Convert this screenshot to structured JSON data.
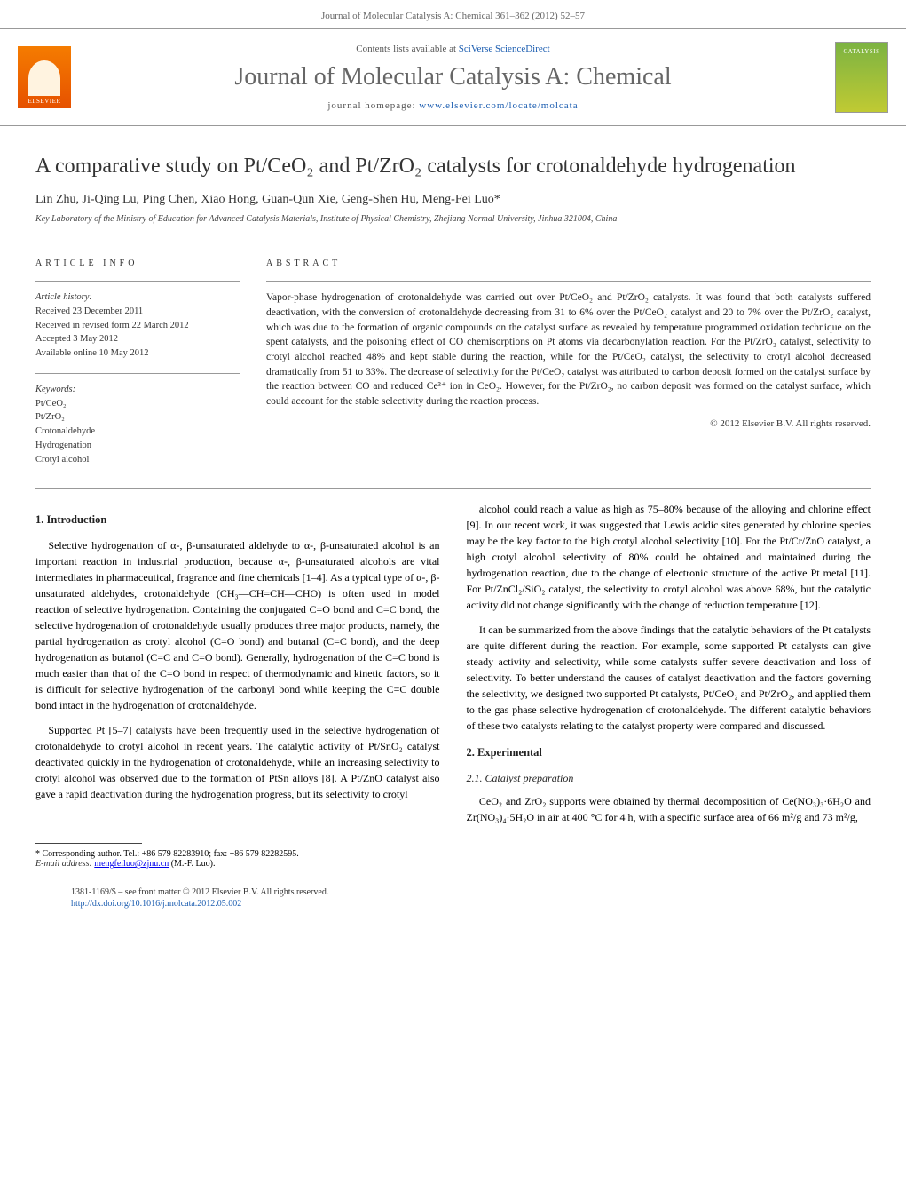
{
  "header": {
    "citation": "Journal of Molecular Catalysis A: Chemical 361–362 (2012) 52–57"
  },
  "bar": {
    "contents_prefix": "Contents lists available at ",
    "contents_link": "SciVerse ScienceDirect",
    "journal_title": "Journal of Molecular Catalysis A: Chemical",
    "homepage_prefix": "journal homepage: ",
    "homepage_link": "www.elsevier.com/locate/molcata",
    "publisher_logo_text": "ELSEVIER",
    "cover_label": "CATALYSIS"
  },
  "title": "A comparative study on Pt/CeO₂ and Pt/ZrO₂ catalysts for crotonaldehyde hydrogenation",
  "authors_line": "Lin Zhu, Ji-Qing Lu, Ping Chen, Xiao Hong, Guan-Qun Xie, Geng-Shen Hu, Meng-Fei Luo*",
  "affiliation": "Key Laboratory of the Ministry of Education for Advanced Catalysis Materials, Institute of Physical Chemistry, Zhejiang Normal University, Jinhua 321004, China",
  "article_info": {
    "heading": "ARTICLE INFO",
    "history_label": "Article history:",
    "history_lines": [
      "Received 23 December 2011",
      "Received in revised form 22 March 2012",
      "Accepted 3 May 2012",
      "Available online 10 May 2012"
    ],
    "keywords_label": "Keywords:",
    "keywords": [
      "Pt/CeO₂",
      "Pt/ZrO₂",
      "Crotonaldehyde",
      "Hydrogenation",
      "Crotyl alcohol"
    ]
  },
  "abstract": {
    "heading": "ABSTRACT",
    "text": "Vapor-phase hydrogenation of crotonaldehyde was carried out over Pt/CeO₂ and Pt/ZrO₂ catalysts. It was found that both catalysts suffered deactivation, with the conversion of crotonaldehyde decreasing from 31 to 6% over the Pt/CeO₂ catalyst and 20 to 7% over the Pt/ZrO₂ catalyst, which was due to the formation of organic compounds on the catalyst surface as revealed by temperature programmed oxidation technique on the spent catalysts, and the poisoning effect of CO chemisorptions on Pt atoms via decarbonylation reaction. For the Pt/ZrO₂ catalyst, selectivity to crotyl alcohol reached 48% and kept stable during the reaction, while for the Pt/CeO₂ catalyst, the selectivity to crotyl alcohol decreased dramatically from 51 to 33%. The decrease of selectivity for the Pt/CeO₂ catalyst was attributed to carbon deposit formed on the catalyst surface by the reaction between CO and reduced Ce³⁺ ion in CeO₂. However, for the Pt/ZrO₂, no carbon deposit was formed on the catalyst surface, which could account for the stable selectivity during the reaction process.",
    "copyright": "© 2012 Elsevier B.V. All rights reserved."
  },
  "body": {
    "sec1_head": "1. Introduction",
    "p1": "Selective hydrogenation of α-, β-unsaturated aldehyde to α-, β-unsaturated alcohol is an important reaction in industrial production, because α-, β-unsaturated alcohols are vital intermediates in pharmaceutical, fragrance and fine chemicals [1–4]. As a typical type of α-, β-unsaturated aldehydes, crotonaldehyde (CH₃—CH=CH—CHO) is often used in model reaction of selective hydrogenation. Containing the conjugated C=O bond and C=C bond, the selective hydrogenation of crotonaldehyde usually produces three major products, namely, the partial hydrogenation as crotyl alcohol (C=O bond) and butanal (C=C bond), and the deep hydrogenation as butanol (C=C and C=O bond). Generally, hydrogenation of the C=C bond is much easier than that of the C=O bond in respect of thermodynamic and kinetic factors, so it is difficult for selective hydrogenation of the carbonyl bond while keeping the C=C double bond intact in the hydrogenation of crotonaldehyde.",
    "p2": "Supported Pt [5–7] catalysts have been frequently used in the selective hydrogenation of crotonaldehyde to crotyl alcohol in recent years. The catalytic activity of Pt/SnO₂ catalyst deactivated quickly in the hydrogenation of crotonaldehyde, while an increasing selectivity to crotyl alcohol was observed due to the formation of PtSn alloys [8]. A Pt/ZnO catalyst also gave a rapid deactivation during the hydrogenation progress, but its selectivity to crotyl",
    "p3": "alcohol could reach a value as high as 75–80% because of the alloying and chlorine effect [9]. In our recent work, it was suggested that Lewis acidic sites generated by chlorine species may be the key factor to the high crotyl alcohol selectivity [10]. For the Pt/Cr/ZnO catalyst, a high crotyl alcohol selectivity of 80% could be obtained and maintained during the hydrogenation reaction, due to the change of electronic structure of the active Pt metal [11]. For Pt/ZnCl₂/SiO₂ catalyst, the selectivity to crotyl alcohol was above 68%, but the catalytic activity did not change significantly with the change of reduction temperature [12].",
    "p4": "It can be summarized from the above findings that the catalytic behaviors of the Pt catalysts are quite different during the reaction. For example, some supported Pt catalysts can give steady activity and selectivity, while some catalysts suffer severe deactivation and loss of selectivity. To better understand the causes of catalyst deactivation and the factors governing the selectivity, we designed two supported Pt catalysts, Pt/CeO₂ and Pt/ZrO₂, and applied them to the gas phase selective hydrogenation of crotonaldehyde. The different catalytic behaviors of these two catalysts relating to the catalyst property were compared and discussed.",
    "sec2_head": "2. Experimental",
    "sec21_head": "2.1. Catalyst preparation",
    "p5": "CeO₂ and ZrO₂ supports were obtained by thermal decomposition of Ce(NO₃)₃·6H₂O and Zr(NO₃)₄·5H₂O in air at 400 °C for 4 h, with a specific surface area of 66 m²/g and 73 m²/g,"
  },
  "corresponding": {
    "line1": "* Corresponding author. Tel.: +86 579 82283910; fax: +86 579 82282595.",
    "line2_prefix": "E-mail address: ",
    "email": "mengfeiluo@zjnu.cn",
    "line2_suffix": " (M.-F. Luo)."
  },
  "footer": {
    "line1": "1381-1169/$ – see front matter © 2012 Elsevier B.V. All rights reserved.",
    "doi": "http://dx.doi.org/10.1016/j.molcata.2012.05.002"
  },
  "colors": {
    "link": "#1a5cb0",
    "header_text": "#666666",
    "body_text": "#222222",
    "elsevier_orange": "#e65100"
  },
  "fontsize": {
    "journal_title": 28,
    "article_title": 24,
    "authors": 14,
    "body": 12,
    "abstract": 11.5,
    "info": 10.5,
    "footer": 10
  }
}
